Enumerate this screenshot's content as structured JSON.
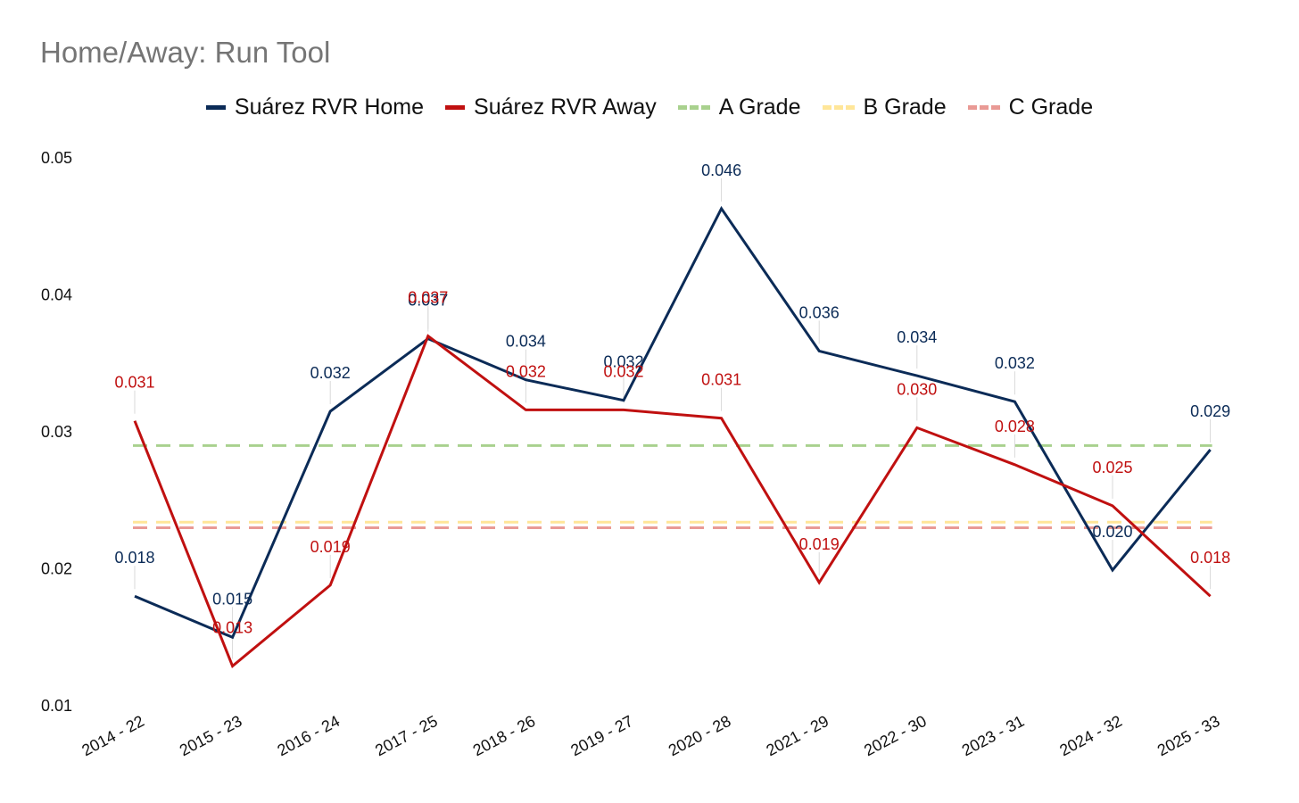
{
  "chart_data": {
    "type": "line",
    "title": "Home/Away: Run Tool",
    "xlabel": "",
    "ylabel": "",
    "ylim": [
      0.01,
      0.05
    ],
    "yticks": [
      "0.01",
      "0.02",
      "0.03",
      "0.04",
      "0.05"
    ],
    "categories": [
      "2014 - 22",
      "2015 - 23",
      "2016 - 24",
      "2017 - 25",
      "2018 - 26",
      "2019 - 27",
      "2020 - 28",
      "2021 - 29",
      "2022 - 30",
      "2023 - 31",
      "2024 - 32",
      "2025 - 33"
    ],
    "series": [
      {
        "name": "Suárez RVR Home",
        "color": "#0b2b57",
        "values": [
          0.018,
          0.015,
          0.0315,
          0.0368,
          0.0338,
          0.0323,
          0.0463,
          0.0359,
          0.0341,
          0.0322,
          0.0199,
          0.0287
        ],
        "labels": [
          "0.018",
          "0.015",
          "0.032",
          "0.037",
          "0.034",
          "0.032",
          "0.046",
          "0.036",
          "0.034",
          "0.032",
          "0.020",
          "0.029"
        ]
      },
      {
        "name": "Suárez RVR Away",
        "color": "#c01010",
        "values": [
          0.0308,
          0.0129,
          0.0188,
          0.037,
          0.0316,
          0.0316,
          0.031,
          0.019,
          0.0303,
          0.0276,
          0.0246,
          0.018
        ],
        "labels": [
          "0.031",
          "0.013",
          "0.019",
          "0.037",
          "0.032",
          "0.032",
          "0.031",
          "0.019",
          "0.030",
          "0.028",
          "0.025",
          "0.018"
        ]
      }
    ],
    "reference_lines": [
      {
        "name": "A Grade",
        "value": 0.029,
        "color": "#a9d18e"
      },
      {
        "name": "B Grade",
        "value": 0.0234,
        "color": "#ffe699"
      },
      {
        "name": "C Grade",
        "value": 0.023,
        "color": "#e99a95"
      }
    ],
    "legend_position": "top-center",
    "grid": false
  }
}
